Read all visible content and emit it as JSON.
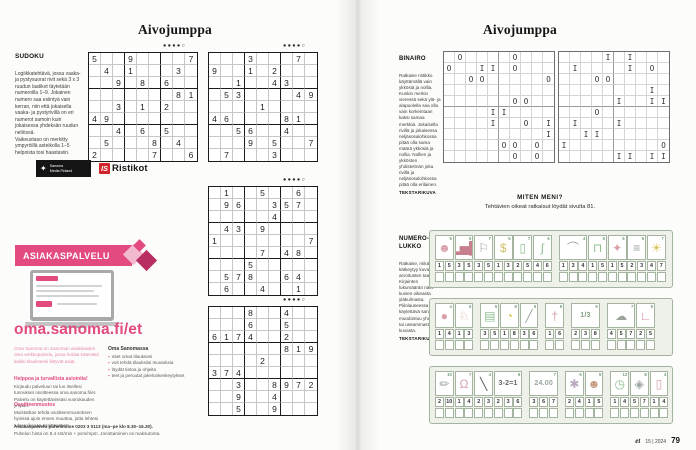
{
  "colors": {
    "accent_pink": "#e34a80",
    "logo_red": "#d2232a",
    "strip_bg": "#eef1ea",
    "strip_border": "#a5b3a1",
    "badge_green": "#6f9a74"
  },
  "page_left": {
    "header": "Aivojumppa",
    "sudoku": {
      "title": "SUDOKU",
      "instructions": "Logiikkatehtävä, jossa vaaka- ja pystysuorat rivit sekä 3 x 3 ruudun laatikot täytetään numeroilla 1–9. Jokainen numero saa esiintyä vain kerran, niin että jokaisella vaaka- ja pystyrivillä on eri numerot samoin kuin jokaisessa yhdeksän ruudun neliössä.\nVaikeustaso on merkitty ympyröillä asteikolla 1–5 helpoista tosi haastaviin.",
      "difficulty": "●●●●○",
      "grids": [
        [
          "5..9....7",
          ".4.1...3.",
          "..9.8.6..",
          ".......81",
          "..3.1.2..",
          "49.......",
          "..4.6.5..",
          ".5...8.4.",
          "2....7..6"
        ],
        [
          "...3...7.",
          "9..1.2...",
          "..1..43..",
          ".53....49",
          "....1....",
          "46....81.",
          "..56..4..",
          "...9.5..7",
          ".7...3..."
        ],
        [
          ".1..5..6.",
          ".96..357.",
          ".....4...",
          ".43.9....",
          "1.......7",
          "....7.48.",
          "...5.....",
          ".578..64.",
          ".6..4..1."
        ],
        [
          "...8..4..",
          "...6..5..",
          "6174..2..",
          "......819",
          "....2....",
          "374......",
          "..3..8972",
          "..9..4...",
          "..5..9..."
        ]
      ]
    },
    "logos": {
      "provider_icon": "paw-icon",
      "provider_line1": "Sanoma",
      "provider_line2": "Media Finland",
      "ristikot_prefix": "IS",
      "ristikot_name": "Ristikot"
    },
    "service": {
      "banner": "ASIAKASPALVELU",
      "url": "oma.sanoma.fi/et",
      "intro": "Oma Sanoma on Sanoman asiakkaiden oma verkkopalvelu, jossa hoidat kätevästi kaikki tilaukseesi liittyvät asiat.",
      "list_title": "Oma Sanomassa",
      "bullets": [
        "näet omat tilauksesi",
        "voit tehdä tilauksiisi muutoksia",
        "löydät tietoa ja ohjeita",
        "teet ja peruutat jakelunkeskeytykset"
      ],
      "sec1_title": "Helppoa ja turvallista asiointia!",
      "sec1_text": "Kirjaudu palveluun tai luo itsellesi tunnukset osoitteessa oma.sanoma.fi/et. Palvelu on käytettävissäsi vuorokauden ympäri.",
      "sec2_title": "Osoitteenmuutos",
      "sec2_text": "Muistathan tehdä osoitteenmuutoksen hyvissä ajoin ennen muuttoa, jotta lehtesi tulee oikeaan osoitteeseen.",
      "footer_line1": "Asiakaspalvelu puhelimitse 0203 3 0113 (ma–pe klo 8.30–16.30).",
      "footer_line2": "Puhelun hinta on 8,4 snt/min + pvm/mpm. Jonottaminen on maksutonta."
    }
  },
  "page_right": {
    "header": "Aivojumppa",
    "binairo": {
      "title": "BINAIRO",
      "instructions": "Ratkaise ristikko käyttämällä vain ykkösiä ja nollia. Kunkin merkin vieressä sekä ylä- ja alapuolella saa olla vain korkeintaan kaksi samaa merkkiä. Jokaisella rivillä ja jokaisessa neljäsosalohkossa pitää olla sama määrä ykkösiä ja nollia. Nollien ja ykkösten yhdistelmän joka rivillä ja neljäsosalohkossa pitää olla erilainen.",
      "credit": "TEKSTARIKUVA",
      "grids": [
        [
          ".O....O...",
          "O..II.O...",
          "..OO.....O",
          "..........",
          "......OO..",
          "....II....",
          "....I..O.I",
          ".........I",
          ".....OO.O.",
          "......O.O."
        ],
        [
          "....I.I...",
          ".I....I.O.",
          "...OO.....",
          "........I.",
          ".....I..II",
          "...O......",
          ".I...I....",
          "..II......",
          "I........O",
          ".....II.II"
        ]
      ]
    },
    "miten_meni": {
      "title": "MITEN MENI?",
      "text": "Tehtävien oikeat ratkaisut löydät sivulta 81."
    },
    "numerolukko": {
      "title": "NUMERO-\nLUKKO",
      "instructions": "Ratkaise, mikä lause kätkeytyy kuva-arvoitusten taakse. Kirjainten lukumäärän näet kuvien oikeasta yläkulmasta. Piilolauseessa käytettävä sana muodostuu yhdestä tai useammasta kuvasta.",
      "credit": "TEKSTARIKUVA",
      "strips": [
        {
          "groups": [
            {
              "pictures": [
                {
                  "name": "theater-mask",
                  "glyph": "☻",
                  "color": "#d9a0a8",
                  "badge": 5,
                  "cells": [
                    1,
                    5
                  ]
                },
                {
                  "name": "bar-chart",
                  "glyph": "▂▅█",
                  "color": "#c87f8d",
                  "badge": 5,
                  "cells": [
                    3,
                    5
                  ]
                },
                {
                  "name": "whistle",
                  "glyph": "⚐",
                  "color": "#9aa49a",
                  "badge": 7,
                  "cells": [
                    3,
                    5
                  ]
                },
                {
                  "name": "dollar-sign",
                  "glyph": "$",
                  "color": "#cfc06a",
                  "badge": 5,
                  "cells": [
                    1,
                    3
                  ]
                },
                {
                  "name": "mobile-phone",
                  "glyph": "▯",
                  "color": "#8fbf8f",
                  "badge": 7,
                  "cells": [
                    2,
                    5
                  ]
                },
                {
                  "name": "italy-boot",
                  "glyph": "ʃ",
                  "color": "#8fbf8f",
                  "badge": 6,
                  "cells": [
                    4,
                    6
                  ]
                }
              ]
            },
            {
              "pictures": [
                {
                  "name": "rope-hook",
                  "glyph": "⌒",
                  "color": "#9aa49a",
                  "badge": 4,
                  "cells": [
                    1,
                    3,
                    4
                  ]
                },
                {
                  "name": "window-curtain",
                  "glyph": "⊓",
                  "color": "#8fbf8f",
                  "badge": 5,
                  "cells": [
                    1,
                    5
                  ]
                },
                {
                  "name": "bird",
                  "glyph": "✦",
                  "color": "#d9a0a8",
                  "badge": 5,
                  "cells": [
                    1,
                    5
                  ]
                },
                {
                  "name": "comb",
                  "glyph": "≡",
                  "color": "#9aa49a",
                  "badge": 5,
                  "cells": [
                    2,
                    3
                  ]
                },
                {
                  "name": "sun",
                  "glyph": "☀",
                  "color": "#d8c35a",
                  "badge": 7,
                  "cells": [
                    4,
                    7
                  ]
                }
              ]
            }
          ]
        },
        {
          "groups": [
            {
              "pictures": [
                {
                  "name": "plum",
                  "glyph": "●",
                  "color": "#d9a0a8",
                  "badge": 4,
                  "cells": [
                    1,
                    4
                  ]
                },
                {
                  "name": "squirrel",
                  "glyph": "♘",
                  "color": "#d9a89b",
                  "badge": 5,
                  "cells": [
                    1,
                    3
                  ]
                }
              ]
            },
            {
              "pictures": [
                {
                  "name": "radio",
                  "glyph": "▤",
                  "color": "#8fbf8f",
                  "badge": 5,
                  "cells": [
                    3,
                    5
                  ]
                },
                {
                  "name": "cheese",
                  "glyph": "◔",
                  "color": "#d8c35a",
                  "badge": 8,
                  "cells": [
                    1,
                    8
                  ]
                },
                {
                  "name": "knife",
                  "glyph": "╱",
                  "color": "#9aa49a",
                  "badge": 6,
                  "cells": [
                    3,
                    6
                  ]
                }
              ]
            },
            {
              "pictures": [
                {
                  "name": "angel",
                  "glyph": "†",
                  "color": "#d9a0a8",
                  "badge": 6,
                  "cells": [
                    1,
                    6
                  ]
                }
              ]
            },
            {
              "pictures": [
                {
                  "name": "one-third-fraction",
                  "glyph": "1/3",
                  "text": true,
                  "color": "#7f9f7f",
                  "badge": 9,
                  "cells": [
                    2,
                    3,
                    8
                  ]
                }
              ]
            },
            {
              "pictures": [
                {
                  "name": "storm-cloud",
                  "glyph": "☁",
                  "color": "#9aa49a",
                  "badge": 7,
                  "cells": [
                    4,
                    5,
                    7
                  ]
                },
                {
                  "name": "high-heel-shoe",
                  "glyph": "∟",
                  "color": "#d9889a",
                  "badge": 5,
                  "cells": [
                    2,
                    5
                  ]
                }
              ]
            }
          ]
        },
        {
          "groups": [
            {
              "pictures": [
                {
                  "name": "pencil",
                  "glyph": "✏",
                  "color": "#9aa49a",
                  "badge": 10,
                  "cells": [
                    2,
                    10
                  ]
                },
                {
                  "name": "scales",
                  "glyph": "Ω",
                  "color": "#d9a0a8",
                  "badge": 7,
                  "cells": [
                    1,
                    4
                  ]
                },
                {
                  "name": "paintbrush",
                  "glyph": "╲",
                  "color": "#555555",
                  "badge": 4,
                  "cells": [
                    2,
                    3
                  ]
                },
                {
                  "name": "equation",
                  "glyph": "3-2=1",
                  "text": true,
                  "color": "#666666",
                  "badge": 6,
                  "cells": [
                    2,
                    3,
                    6
                  ]
                }
              ]
            },
            {
              "pictures": [
                {
                  "name": "midnight-time",
                  "glyph": "24.00",
                  "text": true,
                  "color": "#9aa49a",
                  "badge": 7,
                  "cells": [
                    3,
                    6,
                    7
                  ]
                }
              ]
            },
            {
              "pictures": [
                {
                  "name": "bomb",
                  "glyph": "✱",
                  "color": "#b9a9bf",
                  "badge": 5,
                  "cells": [
                    2,
                    4
                  ]
                },
                {
                  "name": "monkey",
                  "glyph": "☻",
                  "color": "#c59a7f",
                  "badge": 5,
                  "cells": [
                    1,
                    5
                  ]
                }
              ]
            },
            {
              "pictures": [
                {
                  "name": "alarm-clock",
                  "glyph": "◷",
                  "color": "#8fbf8f",
                  "badge": 12,
                  "cells": [
                    1,
                    4
                  ]
                },
                {
                  "name": "diamond-ring",
                  "glyph": "◈",
                  "color": "#9aa49a",
                  "badge": 8,
                  "cells": [
                    5,
                    7
                  ]
                },
                {
                  "name": "door",
                  "glyph": "▯",
                  "color": "#d9a0a8",
                  "badge": 4,
                  "cells": [
                    1,
                    4
                  ]
                }
              ]
            }
          ]
        }
      ]
    }
  },
  "footer": {
    "magazine": "et",
    "issue": "15 | 2024",
    "page_number": "79"
  }
}
